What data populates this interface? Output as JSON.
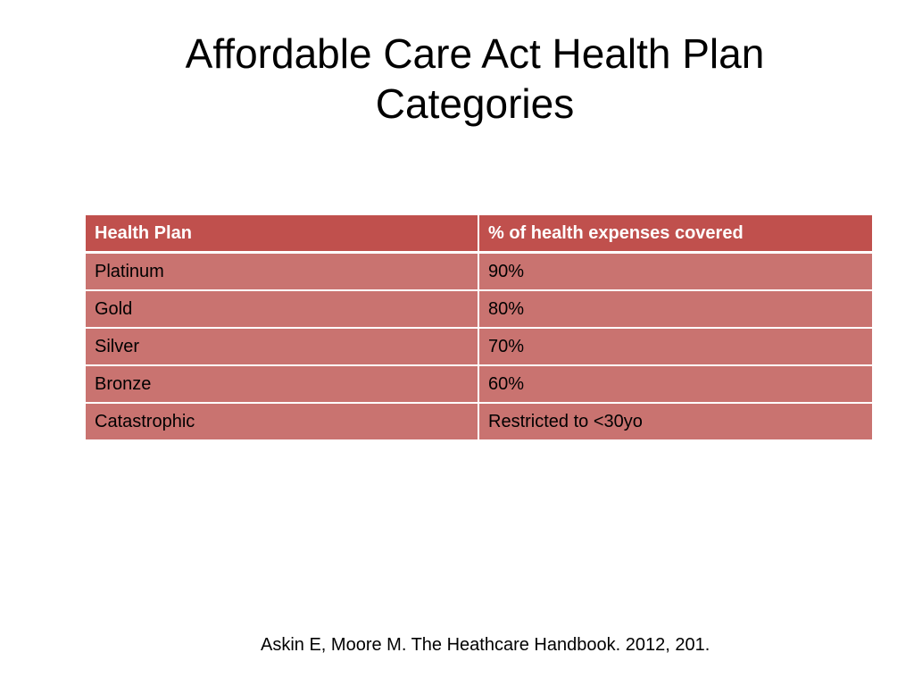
{
  "slide": {
    "title_line1": "Affordable Care Act Health Plan",
    "title_line2": "Categories"
  },
  "table": {
    "headers": [
      "Health Plan",
      "% of health expenses covered"
    ],
    "rows": [
      [
        "Platinum",
        "90%"
      ],
      [
        "Gold",
        "80%"
      ],
      [
        "Silver",
        "70%"
      ],
      [
        "Bronze",
        "60%"
      ],
      [
        "Catastrophic",
        "Restricted to <30yo"
      ]
    ],
    "colors": {
      "header_fill": "#c0504d",
      "row_fill": "#c97370",
      "grid": "#ffffff"
    }
  },
  "citation": "Askin E, Moore M. The Heathcare Handbook. 2012, 201."
}
